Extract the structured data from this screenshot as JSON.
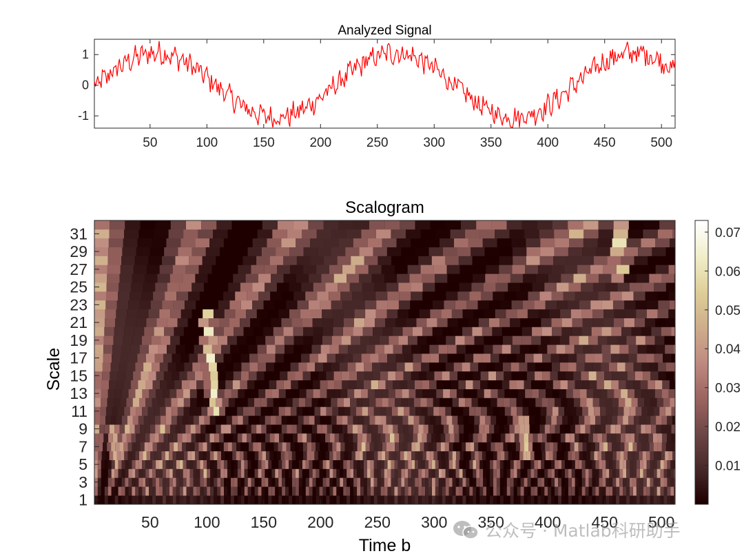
{
  "chart_data": [
    {
      "type": "line",
      "title": "Analyzed Signal",
      "xlim": [
        1,
        512
      ],
      "ylim": [
        -1.4,
        1.5
      ],
      "xticks": [
        50,
        100,
        150,
        200,
        250,
        300,
        350,
        400,
        450,
        500
      ],
      "yticks": [
        -1,
        0,
        1
      ],
      "line_color": "#ff0000",
      "signal": {
        "description_of_trend": "sinusoid with period ~210 samples plus high-frequency noise",
        "approx_peaks": [
          {
            "x": 55,
            "y": 1.4
          },
          {
            "x": 265,
            "y": 1.45
          },
          {
            "x": 475,
            "y": 1.45
          }
        ],
        "approx_troughs": [
          {
            "x": 160,
            "y": -1.4
          },
          {
            "x": 370,
            "y": -1.45
          }
        ],
        "noise_amplitude": 0.32,
        "samples": 512
      }
    },
    {
      "type": "heatmap",
      "title": "Scalogram",
      "xlabel": "Time b",
      "ylabel": "Scale",
      "xlim": [
        1,
        512
      ],
      "ylim": [
        1,
        32
      ],
      "xticks": [
        50,
        100,
        150,
        200,
        250,
        300,
        350,
        400,
        450,
        500
      ],
      "yticks": [
        1,
        3,
        5,
        7,
        9,
        11,
        13,
        15,
        17,
        19,
        21,
        23,
        25,
        27,
        29,
        31
      ],
      "colormap": "pink",
      "colorbar": {
        "range": [
          0,
          0.073
        ],
        "ticks": [
          0.01,
          0.02,
          0.03,
          0.04,
          0.05,
          0.06,
          0.07
        ],
        "tick_labels": [
          "0.01",
          "0.02",
          "0.03",
          "0.04",
          "0.05",
          "0.06",
          "0.07"
        ]
      },
      "hotspots": [
        {
          "time": 105,
          "scale_from": 11,
          "scale_to": 22,
          "value": 0.065
        },
        {
          "time": 460,
          "scale_from": 26,
          "scale_to": 32,
          "value": 0.062
        },
        {
          "time": 380,
          "scale_from": 6,
          "scale_to": 10,
          "value": 0.055
        },
        {
          "time": 18,
          "scale_from": 6,
          "scale_to": 9,
          "value": 0.05
        }
      ]
    }
  ],
  "watermark": {
    "text": "公众号 · Matlab科研助手",
    "icon": "wechat-icon"
  }
}
